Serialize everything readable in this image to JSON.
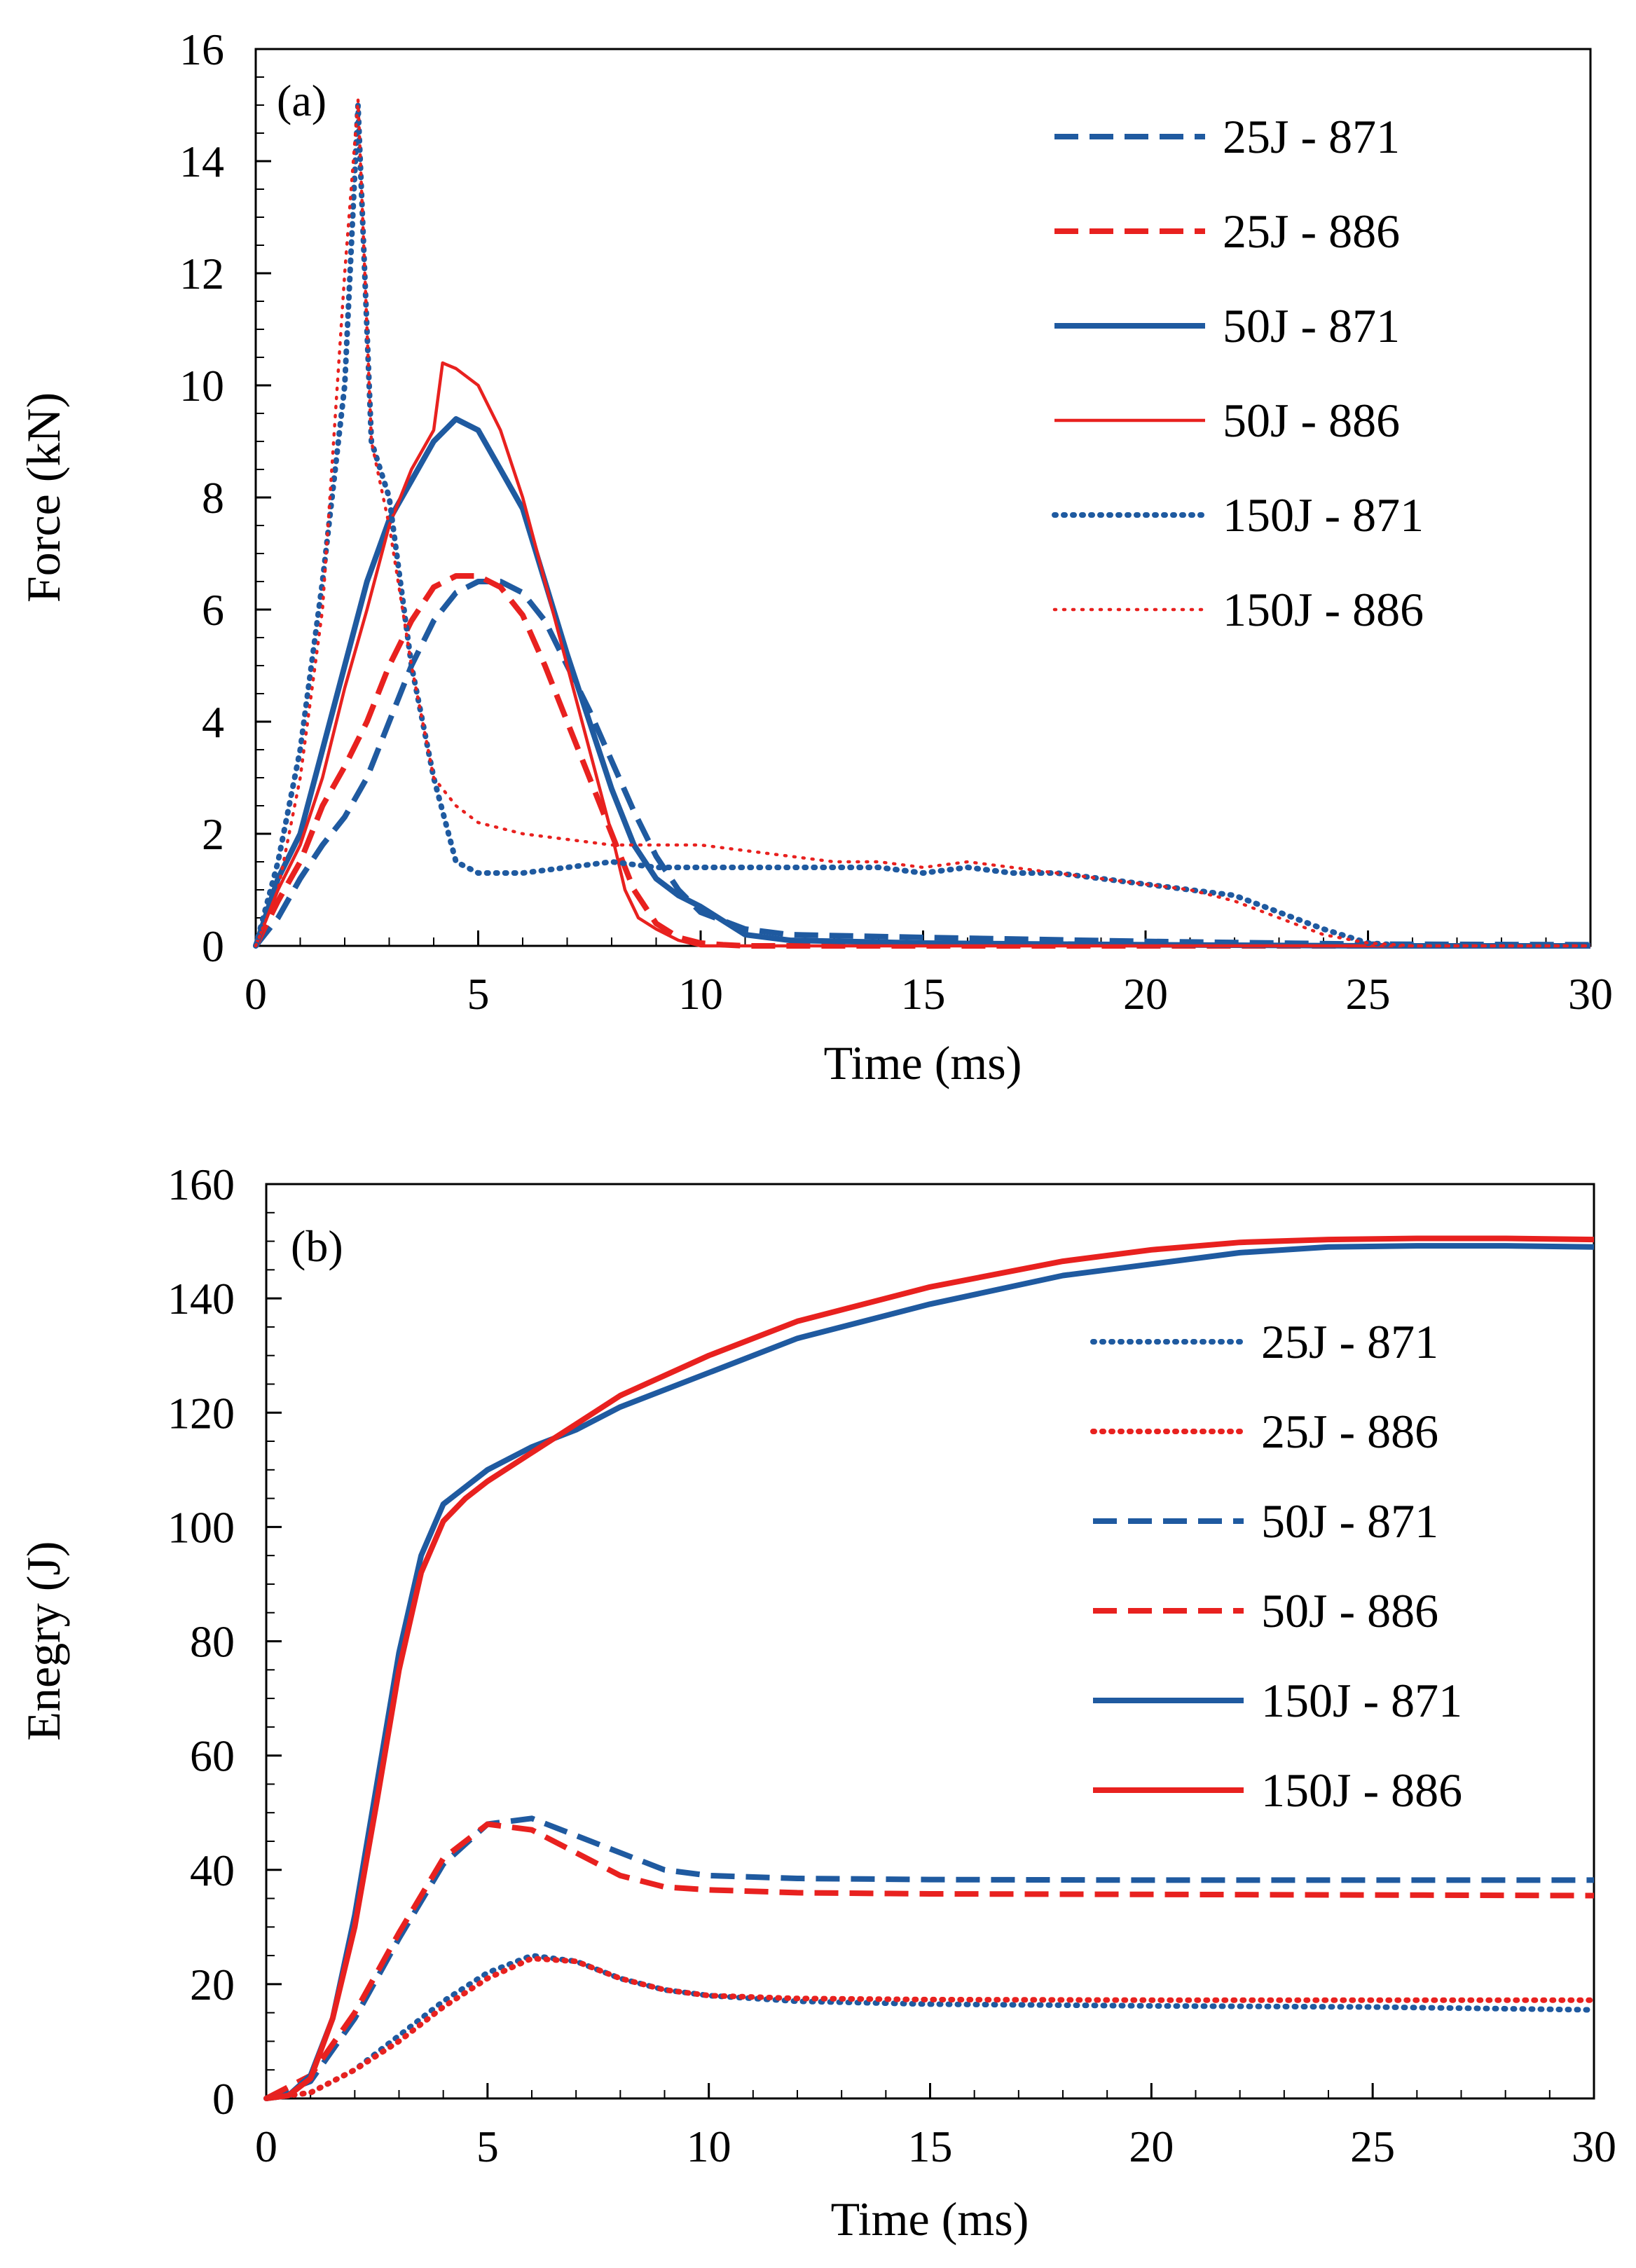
{
  "colors": {
    "blue": "#1F5AA0",
    "red": "#E8211F",
    "axis": "#000000",
    "background": "#ffffff"
  },
  "chart_data": [
    {
      "panel": "(a)",
      "type": "line",
      "title": "",
      "xlabel": "Time (ms)",
      "ylabel": "Force (kN)",
      "xlim": [
        0,
        30
      ],
      "ylim": [
        0,
        16
      ],
      "xticks": [
        0,
        5,
        10,
        15,
        20,
        25,
        30
      ],
      "yticks": [
        0,
        2,
        4,
        6,
        8,
        10,
        12,
        14,
        16
      ],
      "grid": false,
      "legend_position": "top-right",
      "series": [
        {
          "name": "25J - 871",
          "color": "blue",
          "style": "dashed",
          "width": "thick",
          "x": [
            0,
            0.5,
            1,
            1.5,
            2,
            2.5,
            3,
            3.5,
            4,
            4.5,
            5,
            5.5,
            6,
            6.5,
            7,
            7.5,
            8,
            8.5,
            9,
            9.5,
            10,
            11,
            12,
            15,
            20,
            25,
            30
          ],
          "y": [
            0,
            0.5,
            1.2,
            1.8,
            2.3,
            3.0,
            4.0,
            5.0,
            5.8,
            6.3,
            6.5,
            6.5,
            6.3,
            5.8,
            5.0,
            4.2,
            3.3,
            2.4,
            1.6,
            1.0,
            0.6,
            0.3,
            0.2,
            0.15,
            0.08,
            0.03,
            0.02
          ]
        },
        {
          "name": "25J - 886",
          "color": "red",
          "style": "dashed",
          "width": "thick",
          "x": [
            0,
            0.5,
            1,
            1.5,
            2,
            2.5,
            3,
            3.5,
            4,
            4.5,
            5,
            5.5,
            6,
            6.5,
            7,
            7.5,
            8,
            8.5,
            9,
            9.5,
            10,
            10.5,
            11,
            15,
            20,
            25,
            30
          ],
          "y": [
            0,
            0.8,
            1.5,
            2.5,
            3.2,
            4.0,
            5.0,
            5.8,
            6.4,
            6.6,
            6.6,
            6.4,
            5.9,
            5.0,
            4.0,
            3.0,
            2.0,
            1.0,
            0.4,
            0.15,
            0.05,
            0.02,
            0,
            0,
            0,
            0,
            0
          ]
        },
        {
          "name": "50J - 871",
          "color": "blue",
          "style": "solid",
          "width": "thick",
          "x": [
            0,
            0.5,
            1,
            1.5,
            2,
            2.5,
            3,
            3.5,
            4,
            4.5,
            5,
            5.5,
            6,
            6.5,
            7,
            7.5,
            8,
            8.5,
            9,
            9.5,
            10,
            11,
            12,
            15,
            20,
            25,
            30
          ],
          "y": [
            0,
            1.2,
            2.0,
            3.5,
            5.0,
            6.5,
            7.6,
            8.3,
            9.0,
            9.4,
            9.2,
            8.5,
            7.8,
            6.5,
            5.2,
            4.0,
            2.8,
            1.8,
            1.2,
            0.9,
            0.7,
            0.2,
            0.1,
            0.05,
            0.02,
            0,
            0
          ]
        },
        {
          "name": "50J - 886",
          "color": "red",
          "style": "solid",
          "width": "thin",
          "x": [
            0,
            0.5,
            1,
            1.5,
            2,
            2.5,
            3,
            3.5,
            4,
            4.2,
            4.5,
            5,
            5.5,
            6,
            6.5,
            7,
            7.5,
            8,
            8.3,
            8.6,
            9,
            9.5,
            10,
            15,
            20,
            25,
            30
          ],
          "y": [
            0,
            1.0,
            1.8,
            3.0,
            4.6,
            6.0,
            7.5,
            8.5,
            9.2,
            10.4,
            10.3,
            10.0,
            9.2,
            8.0,
            6.5,
            5.0,
            3.5,
            2.0,
            1.0,
            0.5,
            0.3,
            0.1,
            0,
            0,
            0,
            0,
            0
          ]
        },
        {
          "name": "150J - 871",
          "color": "blue",
          "style": "dotted",
          "width": "thick",
          "x": [
            0,
            0.5,
            1,
            1.5,
            2,
            2.3,
            2.6,
            3,
            3.5,
            4,
            4.5,
            5,
            6,
            7,
            8,
            9,
            10,
            11,
            12,
            13,
            14,
            15,
            16,
            17,
            18,
            19,
            20,
            21,
            22,
            23,
            24,
            25,
            26,
            27,
            28,
            30
          ],
          "y": [
            0,
            1.5,
            3.5,
            6.5,
            10.0,
            15.0,
            9.0,
            8.0,
            5.0,
            3.0,
            1.5,
            1.3,
            1.3,
            1.4,
            1.5,
            1.4,
            1.4,
            1.4,
            1.4,
            1.4,
            1.4,
            1.3,
            1.4,
            1.3,
            1.3,
            1.2,
            1.1,
            1.0,
            0.9,
            0.6,
            0.3,
            0.05,
            0,
            0,
            0,
            0
          ]
        },
        {
          "name": "150J - 886",
          "color": "red",
          "style": "dotted",
          "width": "thin",
          "x": [
            0,
            0.5,
            1,
            1.5,
            2,
            2.3,
            2.6,
            3,
            3.5,
            4,
            4.5,
            5,
            6,
            7,
            8,
            9,
            10,
            11,
            12,
            13,
            14,
            15,
            16,
            17,
            18,
            19,
            20,
            21,
            22,
            23,
            24,
            25,
            26,
            27,
            28,
            30
          ],
          "y": [
            0,
            1.0,
            3.0,
            6.0,
            12.0,
            15.1,
            9.0,
            7.5,
            5.0,
            3.0,
            2.5,
            2.2,
            2.0,
            1.9,
            1.8,
            1.8,
            1.8,
            1.7,
            1.6,
            1.5,
            1.5,
            1.4,
            1.5,
            1.4,
            1.3,
            1.2,
            1.1,
            1.0,
            0.8,
            0.5,
            0.2,
            0.05,
            0,
            0,
            0,
            0
          ]
        }
      ]
    },
    {
      "panel": "(b)",
      "type": "line",
      "title": "",
      "xlabel": "Time (ms)",
      "ylabel": "Enegry (J)",
      "xlim": [
        0,
        30
      ],
      "ylim": [
        0,
        160
      ],
      "xticks": [
        0,
        5,
        10,
        15,
        20,
        25,
        30
      ],
      "yticks": [
        0,
        20,
        40,
        60,
        80,
        100,
        120,
        140,
        160
      ],
      "grid": false,
      "legend_position": "right",
      "series": [
        {
          "name": "25J - 871",
          "color": "blue",
          "style": "dotted",
          "width": "thick",
          "x": [
            0,
            1,
            2,
            3,
            4,
            5,
            6,
            7,
            8,
            9,
            10,
            12,
            15,
            20,
            25,
            30
          ],
          "y": [
            0,
            1,
            5,
            11,
            17,
            22,
            25,
            24,
            21,
            19,
            18,
            17,
            16.5,
            16.2,
            16,
            15.5
          ]
        },
        {
          "name": "25J - 886",
          "color": "red",
          "style": "dotted",
          "width": "thick",
          "x": [
            0,
            1,
            2,
            3,
            4,
            5,
            6,
            7,
            8,
            9,
            10,
            12,
            15,
            20,
            25,
            30
          ],
          "y": [
            0,
            1,
            5,
            10,
            16,
            21,
            24.5,
            24,
            21,
            19,
            18,
            17.5,
            17.3,
            17.2,
            17.2,
            17.2
          ]
        },
        {
          "name": "50J - 871",
          "color": "blue",
          "style": "dashed",
          "width": "thick",
          "x": [
            0,
            1,
            2,
            3,
            4,
            5,
            6,
            7,
            8,
            9,
            10,
            12,
            15,
            20,
            25,
            30
          ],
          "y": [
            0,
            3,
            14,
            28,
            41,
            48,
            49,
            46,
            43,
            40,
            39,
            38.5,
            38.3,
            38.2,
            38.2,
            38.2
          ]
        },
        {
          "name": "50J - 886",
          "color": "red",
          "style": "dashed",
          "width": "thick",
          "x": [
            0,
            1,
            2,
            3,
            4,
            5,
            6,
            7,
            8,
            9,
            10,
            12,
            15,
            20,
            25,
            30
          ],
          "y": [
            0,
            4,
            15,
            29,
            42,
            48,
            47,
            43,
            39,
            37,
            36.5,
            36,
            35.8,
            35.7,
            35.6,
            35.5
          ]
        },
        {
          "name": "150J - 871",
          "color": "blue",
          "style": "solid",
          "width": "thick",
          "x": [
            0,
            0.5,
            1,
            1.5,
            2,
            2.5,
            3,
            3.5,
            4,
            4.5,
            5,
            6,
            7,
            8,
            10,
            12,
            15,
            18,
            20,
            22,
            24,
            26,
            28,
            30
          ],
          "y": [
            0,
            0.5,
            4,
            14,
            32,
            55,
            78,
            95,
            104,
            107,
            110,
            114,
            117,
            121,
            127,
            133,
            139,
            144,
            146,
            148,
            149,
            149.2,
            149.2,
            149
          ]
        },
        {
          "name": "150J - 886",
          "color": "red",
          "style": "solid",
          "width": "thick",
          "x": [
            0,
            0.5,
            1,
            1.5,
            2,
            2.5,
            3,
            3.5,
            4,
            4.5,
            5,
            6,
            7,
            8,
            10,
            12,
            15,
            18,
            20,
            22,
            24,
            26,
            28,
            30
          ],
          "y": [
            0,
            0.5,
            3.5,
            14,
            30,
            52,
            75,
            92,
            101,
            105,
            108,
            113,
            118,
            123,
            130,
            136,
            142,
            146.5,
            148.5,
            149.8,
            150.3,
            150.5,
            150.5,
            150.3
          ]
        }
      ]
    }
  ]
}
